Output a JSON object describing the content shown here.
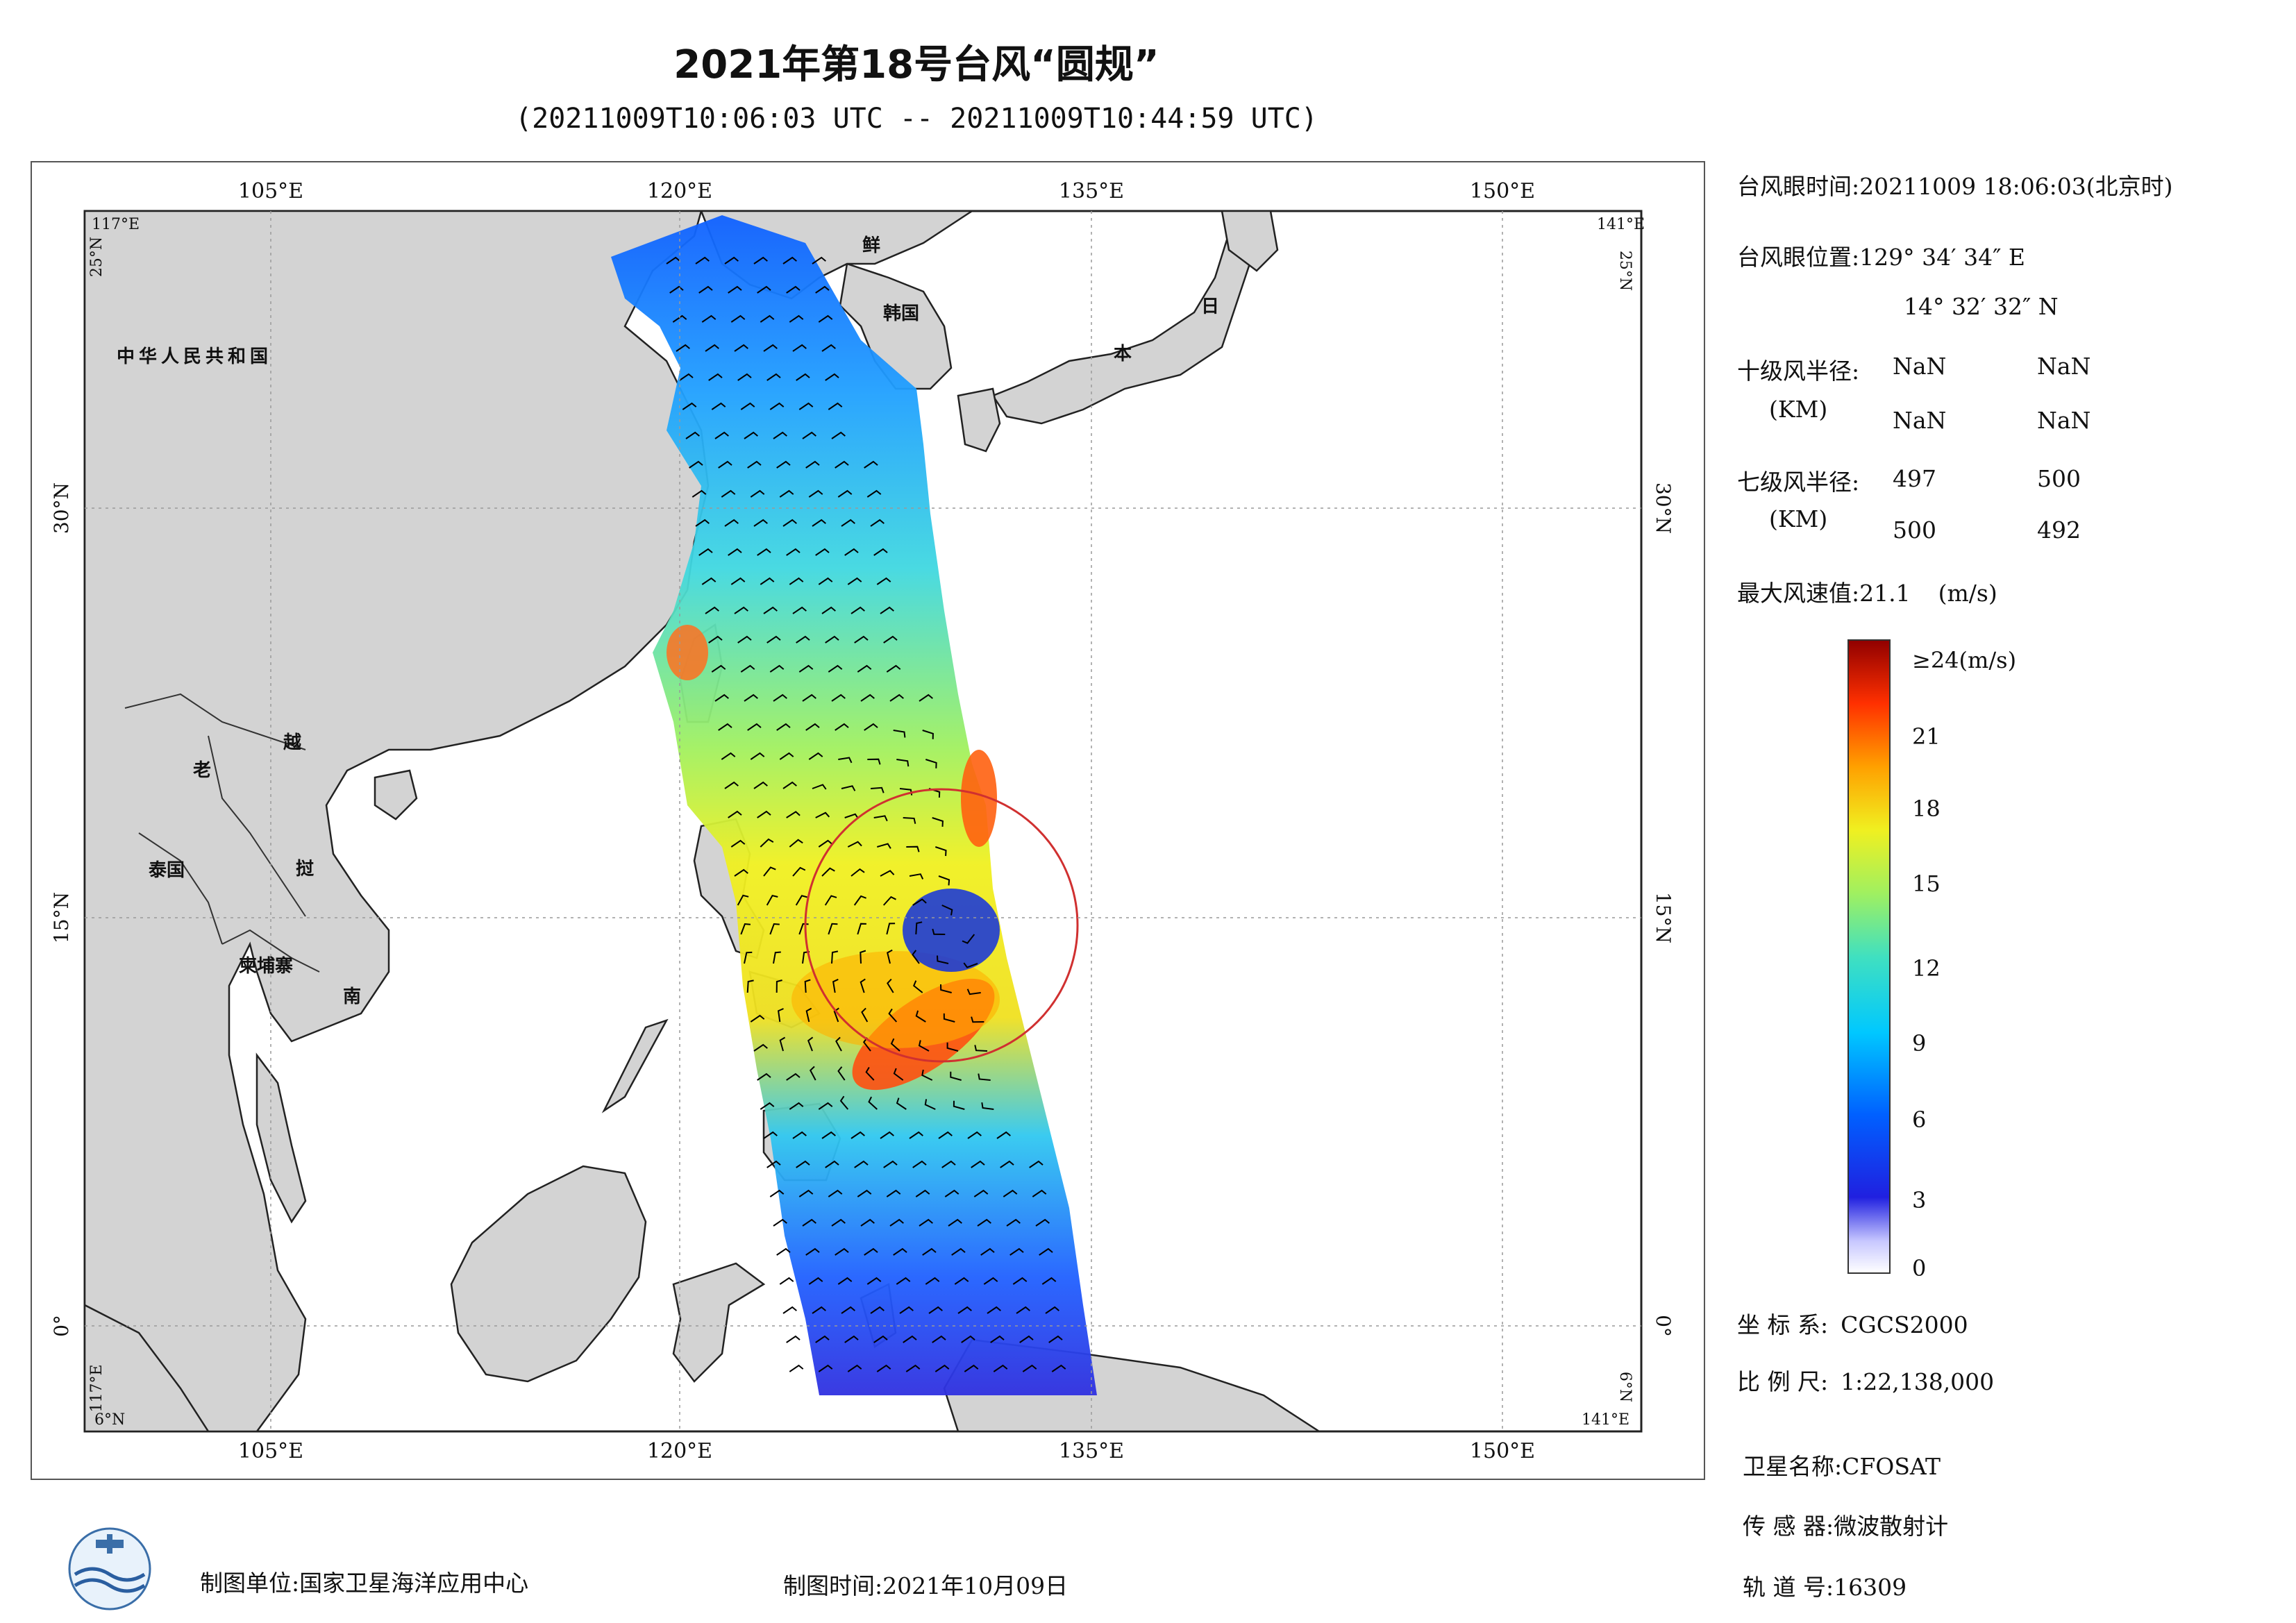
{
  "header": {
    "title": "2021年第18号台风“圆规”",
    "subtitle": "(20211009T10:06:03 UTC -- 20211009T10:44:59 UTC)"
  },
  "map": {
    "lon_ticks": [
      "105°E",
      "120°E",
      "135°E",
      "150°E"
    ],
    "lat_ticks_left": [
      "30°N",
      "15°N",
      "0°"
    ],
    "lat_ticks_right": [
      "30°N",
      "15°N",
      "0°"
    ],
    "corner_labels": {
      "tl_lon": "117°E",
      "tl_lat": "25°N",
      "tr_lon": "141°E",
      "tr_lat": "25°N",
      "bl_lon": "117°E",
      "bl_lat": "6°N",
      "br_lon": "141°E",
      "br_lat": "6°N"
    },
    "place_labels": [
      "中华人民共和国",
      "鲜",
      "韩国",
      "日",
      "本",
      "老",
      "越",
      "泰国",
      "挝",
      "柬埔寨",
      "南"
    ],
    "colors": {
      "land": "#d3d3d3",
      "sea": "#ffffff",
      "coast": "#222222",
      "circle": "#d03030"
    }
  },
  "info": {
    "eye_time_label": "台风眼时间:",
    "eye_time_value": "20211009 18:06:03(北京时)",
    "eye_pos_label": "台风眼位置:",
    "eye_pos_lon": "129° 34′ 34″ E",
    "eye_pos_lat": "14° 32′ 32″ N",
    "r10_label": "十级风半径:",
    "r10_unit": "(KM)",
    "r10_values": [
      "NaN",
      "NaN",
      "NaN",
      "NaN"
    ],
    "r7_label": "七级风半径:",
    "r7_unit": "(KM)",
    "r7_values": [
      "497",
      "500",
      "500",
      "492"
    ],
    "max_wind_label": "最大风速值:",
    "max_wind_value": "21.1",
    "max_wind_unit": "(m/s)"
  },
  "colorbar": {
    "ticks": [
      "≥24(m/s)",
      "21",
      "18",
      "15",
      "12",
      "9",
      "6",
      "3",
      "0"
    ],
    "colors": [
      "#e8e8ff",
      "#2020e0",
      "#0060ff",
      "#00c8ff",
      "#40e0c0",
      "#a0f060",
      "#f0f020",
      "#ffb000",
      "#ff4000",
      "#a00000"
    ]
  },
  "meta": {
    "crs_label": "坐 标 系:",
    "crs_value": "CGCS2000",
    "scale_label": "比 例 尺:",
    "scale_value": "1:22,138,000",
    "sat_label": "卫星名称:",
    "sat_value": "CFOSAT",
    "sensor_label": "传 感 器:",
    "sensor_value": "微波散射计",
    "orbit_label": "轨 道 号:",
    "orbit_value": "16309"
  },
  "footer": {
    "producer": "制图单位:国家卫星海洋应用中心",
    "date": "制图时间:2021年10月09日"
  }
}
